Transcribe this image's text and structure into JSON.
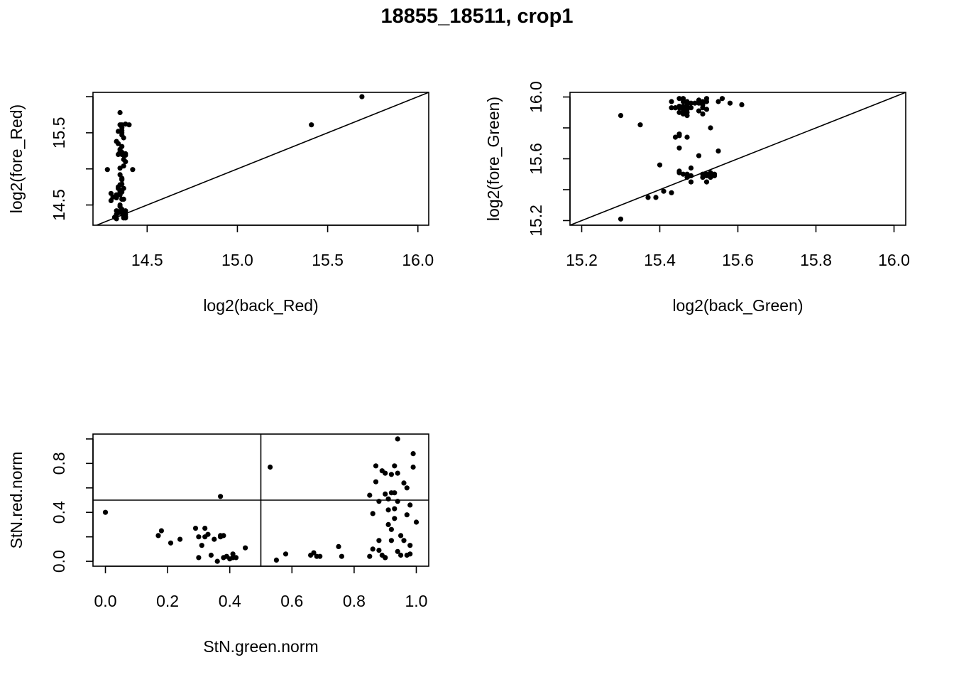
{
  "figure": {
    "title": "18855_18511, crop1"
  },
  "chart_data": [
    {
      "type": "scatter",
      "xlabel": "log2(back_Red)",
      "ylabel": "log2(fore_Red)",
      "xlim": [
        14.2,
        16.06
      ],
      "ylim": [
        14.22,
        16.06
      ],
      "xticks": [
        14.5,
        15.0,
        15.5,
        16.0
      ],
      "xtick_labels": [
        "14.5",
        "15.0",
        "15.5",
        "16.0"
      ],
      "yticks": [
        14.5,
        15.0,
        15.5,
        16.0
      ],
      "ytick_labels": [
        "14.5",
        "",
        "15.5",
        ""
      ],
      "reference_lines": [
        {
          "kind": "abline",
          "intercept": 0,
          "slope": 1
        }
      ],
      "x": [
        14.4,
        14.42,
        14.37,
        14.35,
        14.36,
        14.36,
        14.36,
        14.33,
        14.38,
        14.36,
        14.36,
        14.35,
        14.33,
        14.35,
        14.36,
        14.37,
        14.33,
        14.36,
        14.35,
        14.34,
        14.35,
        14.36,
        14.38,
        14.38,
        14.38,
        14.37,
        14.37,
        14.33,
        14.36,
        14.35,
        14.36,
        14.37,
        14.36,
        14.28,
        14.37,
        14.38,
        14.35,
        14.35,
        14.36,
        14.37,
        14.34,
        14.36,
        14.34,
        14.3,
        14.37,
        14.36,
        14.3,
        14.34,
        14.33,
        14.38,
        14.38,
        14.31,
        14.34,
        14.35,
        14.32,
        14.35,
        14.34,
        14.36,
        14.36,
        14.35,
        14.37,
        14.37,
        14.34,
        14.36,
        14.36,
        14.38,
        14.33,
        14.36,
        14.33,
        14.37,
        14.37,
        14.35,
        14.34,
        15.69,
        15.41
      ],
      "y": [
        15.61,
        14.99,
        15.13,
        15.24,
        15.31,
        14.85,
        15.22,
        14.42,
        14.34,
        15.2,
        14.79,
        14.68,
        14.31,
        14.78,
        15.53,
        15.19,
        14.64,
        15.61,
        14.48,
        14.4,
        15.27,
        14.41,
        15.1,
        15.19,
        14.42,
        15.04,
        14.73,
        14.37,
        14.87,
        14.64,
        15.5,
        14.58,
        15.23,
        14.99,
        14.32,
        14.37,
        14.92,
        15.61,
        15.47,
        14.38,
        15.2,
        15.57,
        14.73,
        14.56,
        14.37,
        14.68,
        14.66,
        15.52,
        15.38,
        15.62,
        15.21,
        14.61,
        14.39,
        15.78,
        14.33,
        14.5,
        15.35,
        14.39,
        14.44,
        14.7,
        15.43,
        14.35,
        14.41,
        14.86,
        15.21,
        14.32,
        14.64,
        14.58,
        14.6,
        14.34,
        14.4,
        15.01,
        14.75,
        16.0,
        15.61
      ]
    },
    {
      "type": "scatter",
      "xlabel": "log2(back_Green)",
      "ylabel": "log2(fore_Green)",
      "xlim": [
        15.17,
        16.03
      ],
      "ylim": [
        15.17,
        16.03
      ],
      "xticks": [
        15.2,
        15.4,
        15.6,
        15.8,
        16.0
      ],
      "xtick_labels": [
        "15.2",
        "15.4",
        "15.6",
        "15.8",
        "16.0"
      ],
      "yticks": [
        15.2,
        15.4,
        15.6,
        15.8,
        16.0
      ],
      "ytick_labels": [
        "15.2",
        "",
        "15.6",
        "",
        "16.0"
      ],
      "reference_lines": [
        {
          "kind": "abline",
          "intercept": 0,
          "slope": 1
        }
      ],
      "x": [
        15.48,
        15.48,
        15.44,
        15.45,
        15.46,
        15.46,
        15.45,
        15.52,
        15.5,
        15.51,
        15.45,
        15.53,
        15.45,
        15.54,
        15.44,
        15.46,
        15.47,
        15.52,
        15.47,
        15.46,
        15.47,
        15.47,
        15.5,
        15.52,
        15.47,
        15.46,
        15.43,
        15.53,
        15.45,
        15.47,
        15.47,
        15.49,
        15.48,
        15.56,
        15.51,
        15.45,
        15.48,
        15.45,
        15.51,
        15.45,
        15.47,
        15.43,
        15.52,
        15.53,
        15.46,
        15.46,
        15.45,
        15.45,
        15.47,
        15.5,
        15.46,
        15.52,
        15.52,
        15.47,
        15.55,
        15.51,
        15.51,
        15.5,
        15.51,
        15.47,
        15.48,
        15.44,
        15.53,
        15.47,
        15.45,
        15.3,
        15.35,
        15.37,
        15.39,
        15.4,
        15.41,
        15.43,
        15.47,
        15.53,
        15.51,
        15.58,
        15.61,
        15.55,
        15.54,
        15.3
      ],
      "y": [
        15.45,
        15.96,
        15.93,
        15.93,
        15.97,
        15.92,
        15.93,
        15.45,
        15.91,
        15.96,
        15.67,
        15.5,
        15.76,
        15.5,
        15.74,
        15.89,
        15.94,
        15.5,
        15.9,
        15.9,
        15.48,
        15.97,
        15.62,
        15.99,
        15.96,
        15.94,
        15.97,
        15.48,
        15.52,
        15.95,
        15.94,
        15.96,
        15.54,
        15.99,
        15.48,
        15.51,
        15.49,
        15.93,
        15.97,
        15.75,
        15.96,
        15.93,
        15.97,
        15.51,
        15.5,
        15.9,
        15.9,
        15.94,
        15.88,
        15.98,
        15.99,
        15.92,
        15.49,
        15.74,
        15.97,
        15.95,
        15.93,
        15.96,
        15.5,
        15.94,
        15.93,
        15.93,
        15.5,
        15.92,
        15.99,
        15.88,
        15.82,
        15.35,
        15.35,
        15.56,
        15.39,
        15.38,
        15.5,
        15.8,
        15.89,
        15.96,
        15.95,
        15.65,
        15.49,
        15.21
      ]
    },
    {
      "type": "scatter",
      "xlabel": "StN.green.norm",
      "ylabel": "StN.red.norm",
      "xlim": [
        -0.04,
        1.04
      ],
      "ylim": [
        -0.04,
        1.04
      ],
      "xticks": [
        0.0,
        0.2,
        0.4,
        0.6,
        0.8,
        1.0
      ],
      "xtick_labels": [
        "0.0",
        "0.2",
        "0.4",
        "0.6",
        "0.8",
        "1.0"
      ],
      "yticks": [
        0.0,
        0.2,
        0.4,
        0.6,
        0.8,
        1.0
      ],
      "ytick_labels": [
        "0.0",
        "",
        "0.4",
        "",
        "0.8",
        ""
      ],
      "reference_lines": [
        {
          "kind": "vline",
          "x": 0.5
        },
        {
          "kind": "hline",
          "y": 0.5
        }
      ],
      "x": [
        0.0,
        0.17,
        0.18,
        0.21,
        0.24,
        0.29,
        0.3,
        0.31,
        0.32,
        0.32,
        0.34,
        0.35,
        0.36,
        0.37,
        0.38,
        0.38,
        0.39,
        0.4,
        0.41,
        0.41,
        0.42,
        0.45,
        0.37,
        0.3,
        0.33,
        0.37,
        0.53,
        0.55,
        0.58,
        0.66,
        0.67,
        0.68,
        0.69,
        0.75,
        0.76,
        0.85,
        0.86,
        0.86,
        0.87,
        0.87,
        0.88,
        0.88,
        0.89,
        0.89,
        0.9,
        0.9,
        0.91,
        0.91,
        0.91,
        0.92,
        0.92,
        0.92,
        0.93,
        0.93,
        0.93,
        0.93,
        0.94,
        0.94,
        0.94,
        0.95,
        0.95,
        0.96,
        0.96,
        0.97,
        0.97,
        0.98,
        0.98,
        0.98,
        0.99,
        0.99,
        1.0,
        0.85,
        0.9,
        0.94,
        0.97,
        0.92,
        0.88,
        0.9
      ],
      "y": [
        0.4,
        0.21,
        0.25,
        0.15,
        0.18,
        0.27,
        0.03,
        0.13,
        0.27,
        0.2,
        0.05,
        0.18,
        0.0,
        0.2,
        0.21,
        0.03,
        0.04,
        0.02,
        0.03,
        0.06,
        0.03,
        0.11,
        0.53,
        0.2,
        0.22,
        0.21,
        0.77,
        0.01,
        0.06,
        0.05,
        0.07,
        0.04,
        0.04,
        0.12,
        0.04,
        0.04,
        0.39,
        0.1,
        0.65,
        0.78,
        0.17,
        0.09,
        0.74,
        0.05,
        0.72,
        0.03,
        0.42,
        0.3,
        0.51,
        0.17,
        0.56,
        0.71,
        0.35,
        0.43,
        0.56,
        0.78,
        0.08,
        0.49,
        0.72,
        0.21,
        0.05,
        0.64,
        0.17,
        0.6,
        0.38,
        0.46,
        0.13,
        0.06,
        0.88,
        0.77,
        0.32,
        0.54,
        0.55,
        1.0,
        0.05,
        0.26,
        0.49,
        0.03
      ]
    }
  ]
}
